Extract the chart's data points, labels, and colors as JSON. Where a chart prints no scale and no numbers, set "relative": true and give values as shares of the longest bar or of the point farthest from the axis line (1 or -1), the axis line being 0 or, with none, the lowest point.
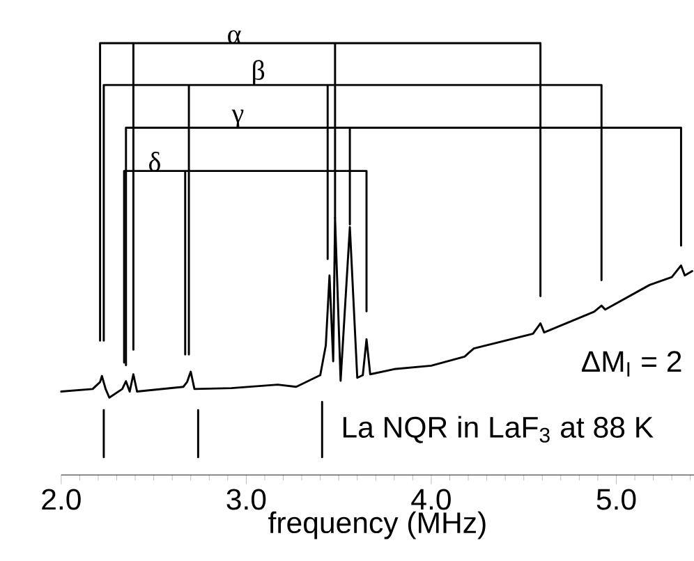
{
  "chart_data": {
    "type": "line",
    "relative": true,
    "xlabel": "frequency (MHz)",
    "xlim": [
      2.0,
      5.42
    ],
    "xticks": [
      {
        "value": 2.0,
        "label": "2.0"
      },
      {
        "value": 2.1,
        "label": null
      },
      {
        "value": 2.2,
        "label": null
      },
      {
        "value": 2.3,
        "label": null
      },
      {
        "value": 2.4,
        "label": null
      },
      {
        "value": 2.5,
        "label": null
      },
      {
        "value": 2.6,
        "label": null
      },
      {
        "value": 2.7,
        "label": null
      },
      {
        "value": 2.8,
        "label": null
      },
      {
        "value": 2.9,
        "label": null
      },
      {
        "value": 3.0,
        "label": "3.0"
      },
      {
        "value": 3.1,
        "label": null
      },
      {
        "value": 3.2,
        "label": null
      },
      {
        "value": 3.3,
        "label": null
      },
      {
        "value": 3.4,
        "label": null
      },
      {
        "value": 3.5,
        "label": null
      },
      {
        "value": 3.6,
        "label": null
      },
      {
        "value": 3.7,
        "label": null
      },
      {
        "value": 3.8,
        "label": null
      },
      {
        "value": 3.9,
        "label": null
      },
      {
        "value": 4.0,
        "label": "4.0"
      },
      {
        "value": 4.1,
        "label": null
      },
      {
        "value": 4.2,
        "label": null
      },
      {
        "value": 4.3,
        "label": null
      },
      {
        "value": 4.4,
        "label": null
      },
      {
        "value": 4.5,
        "label": null
      },
      {
        "value": 4.6,
        "label": null
      },
      {
        "value": 4.7,
        "label": null
      },
      {
        "value": 4.8,
        "label": null
      },
      {
        "value": 4.9,
        "label": null
      },
      {
        "value": 5.0,
        "label": "5.0"
      },
      {
        "value": 5.1,
        "label": null
      },
      {
        "value": 5.2,
        "label": null
      },
      {
        "value": 5.3,
        "label": null
      },
      {
        "value": 5.4,
        "label": null
      }
    ],
    "series": [
      {
        "name": "ΔM$_{I}$ = 2",
        "color": "#000000",
        "x": [
          2.0,
          2.17,
          2.21,
          2.22,
          2.24,
          2.26,
          2.33,
          2.35,
          2.37,
          2.39,
          2.41,
          2.66,
          2.68,
          2.7,
          2.72,
          2.92,
          3.17,
          3.27,
          3.4,
          3.43,
          3.45,
          3.47,
          3.48,
          3.51,
          3.56,
          3.6,
          3.63,
          3.65,
          3.67,
          3.8,
          4.0,
          4.18,
          4.23,
          4.55,
          4.59,
          4.61,
          4.88,
          4.92,
          4.94,
          5.18,
          5.3,
          5.35,
          5.37,
          5.41
        ],
        "values": [
          0.193,
          0.199,
          0.215,
          0.229,
          0.199,
          0.179,
          0.199,
          0.217,
          0.193,
          0.233,
          0.193,
          0.204,
          0.215,
          0.239,
          0.199,
          0.201,
          0.209,
          0.204,
          0.231,
          0.3,
          0.462,
          0.263,
          0.595,
          0.218,
          0.574,
          0.225,
          0.231,
          0.314,
          0.233,
          0.245,
          0.253,
          0.274,
          0.293,
          0.327,
          0.351,
          0.33,
          0.378,
          0.392,
          0.383,
          0.44,
          0.458,
          0.485,
          0.462,
          0.472
        ]
      },
      {
        "name": "α",
        "color": "#000000",
        "x": [
          2.21,
          2.21,
          2.39,
          2.39,
          2.39,
          3.48,
          3.48,
          3.48,
          4.59,
          4.59
        ],
        "values": [
          0.311,
          1.0,
          1.0,
          0.29,
          1.0,
          1.0,
          0.595,
          1.0,
          1.0,
          0.414
        ]
      },
      {
        "name": "β",
        "color": "#000000",
        "x": [
          2.23,
          2.23,
          2.69,
          2.69,
          2.69,
          3.44,
          3.44,
          3.44,
          4.92,
          4.92
        ],
        "values": [
          0.311,
          0.903,
          0.903,
          0.279,
          0.903,
          0.903,
          0.5,
          0.903,
          0.903,
          0.451
        ]
      },
      {
        "name": "γ",
        "color": "#000000",
        "x": [
          2.35,
          2.35,
          3.56,
          3.56,
          3.56,
          5.35,
          5.35
        ],
        "values": [
          0.254,
          0.804,
          0.804,
          0.58,
          0.804,
          0.804,
          0.531
        ]
      },
      {
        "name": "δ",
        "color": "#000000",
        "x": [
          2.34,
          2.34,
          2.67,
          2.67,
          2.67,
          3.65,
          3.65
        ],
        "values": [
          0.26,
          0.704,
          0.704,
          0.279,
          0.704,
          0.704,
          0.379
        ]
      },
      {
        "name": "La NQR in LaF$_{3}$ at 88 K",
        "color": "#000000",
        "x": [
          2.23,
          2.23,
          null,
          2.74,
          2.74,
          null,
          3.41,
          3.41
        ],
        "values": [
          0.041,
          0.15,
          null,
          0.041,
          0.15,
          null,
          0.041,
          0.169
        ]
      }
    ]
  }
}
